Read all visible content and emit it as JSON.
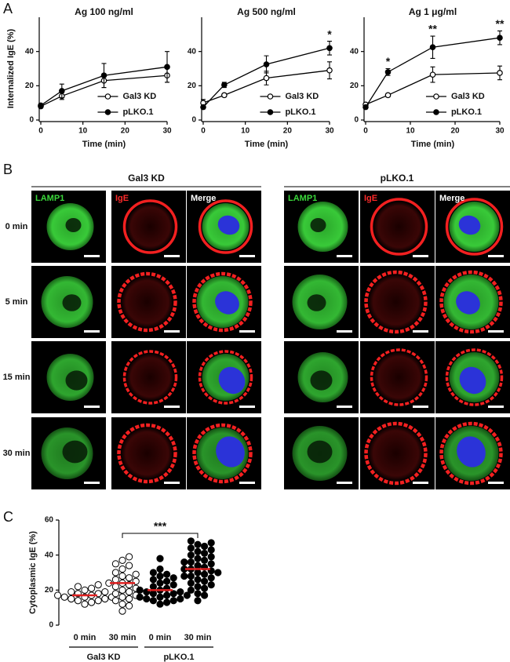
{
  "panels": [
    "A",
    "B",
    "C"
  ],
  "chart_data": [
    {
      "type": "line",
      "title": "Ag 100 ng/ml",
      "x_label": "Time (min)",
      "y_label": "Internalized IgE (%)",
      "x": [
        0,
        5,
        15,
        30
      ],
      "xlim": [
        0,
        30
      ],
      "xticks": [
        0,
        10,
        20,
        30
      ],
      "ylim": [
        0,
        60
      ],
      "yticks": [
        0,
        20,
        40
      ],
      "legend": "lower right",
      "series": [
        {
          "name": "Gal3 KD",
          "color": "#000000",
          "marker_fill": "#ffffff",
          "values": [
            8,
            14,
            23,
            26
          ],
          "errors": [
            1,
            2,
            4,
            4
          ]
        },
        {
          "name": "pLKO.1",
          "color": "#000000",
          "marker_fill": "#000000",
          "values": [
            8.5,
            17,
            26,
            31
          ],
          "errors": [
            1,
            4,
            7,
            9
          ]
        }
      ],
      "annotations": []
    },
    {
      "type": "line",
      "title": "Ag 500 ng/ml",
      "x_label": "Time (min)",
      "x": [
        0,
        5,
        15,
        30
      ],
      "xlim": [
        0,
        30
      ],
      "xticks": [
        0,
        10,
        20,
        30
      ],
      "ylim": [
        0,
        60
      ],
      "yticks": [
        0,
        20,
        40
      ],
      "legend": "lower right",
      "series": [
        {
          "name": "Gal3 KD",
          "color": "#000000",
          "marker_fill": "#ffffff",
          "values": [
            10,
            14.5,
            24.5,
            29
          ],
          "errors": [
            2,
            1,
            4,
            5
          ]
        },
        {
          "name": "pLKO.1",
          "color": "#000000",
          "marker_fill": "#000000",
          "values": [
            7.5,
            20.5,
            32.5,
            42
          ],
          "errors": [
            1,
            1.5,
            5,
            4
          ]
        }
      ],
      "annotations": [
        {
          "text": "*",
          "x": 30
        }
      ]
    },
    {
      "type": "line",
      "title": "Ag 1 μg/ml",
      "x_label": "Time (min)",
      "x": [
        0,
        5,
        15,
        30
      ],
      "xlim": [
        0,
        30
      ],
      "xticks": [
        0,
        10,
        20,
        30
      ],
      "ylim": [
        0,
        60
      ],
      "yticks": [
        0,
        20,
        40
      ],
      "legend": "lower right",
      "series": [
        {
          "name": "Gal3 KD",
          "color": "#000000",
          "marker_fill": "#ffffff",
          "values": [
            9,
            14.5,
            26.5,
            27.5
          ],
          "errors": [
            1,
            1,
            4.5,
            4
          ]
        },
        {
          "name": "pLKO.1",
          "color": "#000000",
          "marker_fill": "#000000",
          "values": [
            7.5,
            28,
            42.5,
            48
          ],
          "errors": [
            1,
            2,
            6.5,
            4
          ]
        }
      ],
      "annotations": [
        {
          "text": "*",
          "x": 5
        },
        {
          "text": "**",
          "x": 15
        },
        {
          "text": "**",
          "x": 30
        }
      ]
    },
    {
      "type": "strip",
      "y_label": "Cytoplasmic IgE (%)",
      "ylim": [
        0,
        60
      ],
      "yticks": [
        0,
        20,
        40,
        60
      ],
      "mean_color": "#e02020",
      "groups": [
        {
          "name": "Gal3 KD",
          "marker_fill": "#ffffff",
          "columns": [
            {
              "label": "0 min",
              "mean": 17,
              "values": [
                12,
                13,
                14,
                14,
                15,
                15,
                16,
                16,
                16,
                17,
                17,
                17,
                18,
                18,
                19,
                19,
                20,
                21,
                22,
                23
              ]
            },
            {
              "label": "30 min",
              "mean": 24,
              "values": [
                8,
                11,
                12,
                14,
                15,
                16,
                17,
                18,
                19,
                20,
                21,
                22,
                23,
                24,
                24,
                25,
                26,
                27,
                28,
                29,
                30,
                32,
                34,
                35,
                37,
                39
              ]
            }
          ]
        },
        {
          "name": "pLKO.1",
          "marker_fill": "#000000",
          "columns": [
            {
              "label": "0 min",
              "mean": 20,
              "values": [
                12,
                13,
                14,
                14,
                15,
                15,
                16,
                16,
                17,
                17,
                18,
                18,
                19,
                19,
                20,
                20,
                21,
                22,
                23,
                24,
                25,
                26,
                27,
                28,
                29,
                30,
                32,
                38
              ]
            },
            {
              "label": "30 min",
              "mean": 32,
              "values": [
                14,
                17,
                18,
                20,
                21,
                22,
                23,
                24,
                25,
                26,
                27,
                28,
                28,
                29,
                30,
                30,
                31,
                32,
                32,
                33,
                34,
                35,
                36,
                36,
                37,
                38,
                39,
                40,
                41,
                42,
                43,
                44,
                45,
                46,
                47,
                48
              ]
            }
          ]
        }
      ],
      "bracket": {
        "text": "***",
        "between": [
          1,
          3
        ]
      }
    }
  ],
  "microscopy": {
    "groups": [
      {
        "title": "Gal3 KD",
        "channels": [
          {
            "name": "LAMP1",
            "color": "#3ad63a"
          },
          {
            "name": "IgE",
            "color": "#ff2a2a"
          },
          {
            "name": "Merge",
            "color": "#ffffff"
          }
        ]
      },
      {
        "title": "pLKO.1",
        "channels": [
          {
            "name": "LAMP1",
            "color": "#3ad63a"
          },
          {
            "name": "IgE",
            "color": "#ff2a2a"
          },
          {
            "name": "Merge",
            "color": "#ffffff"
          }
        ]
      }
    ],
    "rows": [
      "0 min",
      "5 min",
      "15 min",
      "30 min"
    ]
  }
}
